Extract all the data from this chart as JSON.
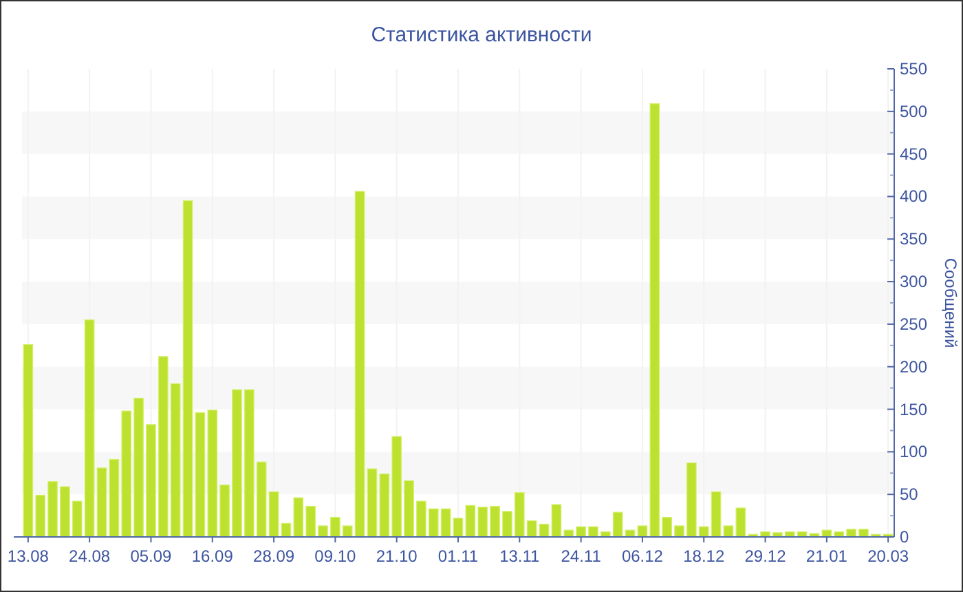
{
  "chart_data": {
    "type": "bar",
    "title": "Статистика активности",
    "ylabel": "Сообщений",
    "categories": [
      "13.08",
      null,
      null,
      null,
      null,
      "24.08",
      null,
      null,
      null,
      null,
      "05.09",
      null,
      null,
      null,
      null,
      "16.09",
      null,
      null,
      null,
      null,
      "28.09",
      null,
      null,
      null,
      null,
      "09.10",
      null,
      null,
      null,
      null,
      "21.10",
      null,
      null,
      null,
      null,
      "01.11",
      null,
      null,
      null,
      null,
      "13.11",
      null,
      null,
      null,
      null,
      "24.11",
      null,
      null,
      null,
      null,
      "06.12",
      null,
      null,
      null,
      null,
      "18.12",
      null,
      null,
      null,
      null,
      "29.12",
      null,
      null,
      null,
      null,
      "21.01",
      null,
      null,
      null,
      null,
      "20.03"
    ],
    "values": [
      226,
      49,
      65,
      59,
      42,
      255,
      81,
      91,
      148,
      163,
      132,
      212,
      180,
      395,
      146,
      149,
      61,
      173,
      173,
      88,
      53,
      16,
      46,
      36,
      13,
      23,
      13,
      406,
      80,
      74,
      118,
      66,
      42,
      33,
      33,
      22,
      37,
      35,
      36,
      30,
      52,
      19,
      15,
      38,
      8,
      12,
      12,
      6,
      29,
      8,
      13,
      509,
      23,
      13,
      87,
      12,
      53,
      13,
      34,
      3,
      6,
      5,
      6,
      6,
      4,
      8,
      6,
      9,
      9,
      3,
      3
    ],
    "color": "#bce22f",
    "ylim": [
      0,
      550
    ],
    "yticks": [
      0,
      {
        "value": 25,
        "label": null
      },
      50,
      {
        "value": 75,
        "label": null
      },
      100,
      {
        "value": 125,
        "label": null
      },
      150,
      {
        "value": 175,
        "label": null
      },
      200,
      {
        "value": 225,
        "label": null
      },
      250,
      {
        "value": 275,
        "label": null
      },
      300,
      {
        "value": 325,
        "label": null
      },
      350,
      {
        "value": 375,
        "label": null
      },
      400,
      {
        "value": 425,
        "label": null
      },
      450,
      {
        "value": 475,
        "label": null
      },
      500,
      {
        "value": 525,
        "label": null
      },
      550
    ],
    "grid": true
  }
}
